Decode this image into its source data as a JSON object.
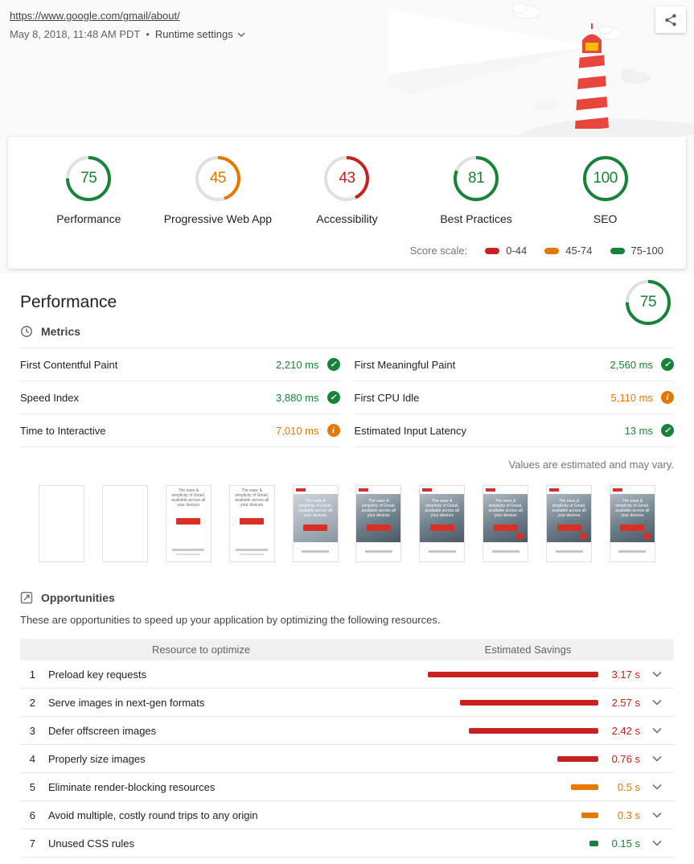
{
  "header": {
    "url": "https://www.google.com/gmail/about/",
    "date": "May 8, 2018, 11:48 AM PDT",
    "separator": "•",
    "runtime_settings": "Runtime settings"
  },
  "colors": {
    "pass": "#178239",
    "average": "#e67700",
    "fail": "#c7221f"
  },
  "scores": [
    {
      "label": "Performance",
      "score": 75,
      "level": "pass"
    },
    {
      "label": "Progressive Web App",
      "score": 45,
      "level": "average"
    },
    {
      "label": "Accessibility",
      "score": 43,
      "level": "fail"
    },
    {
      "label": "Best Practices",
      "score": 81,
      "level": "pass"
    },
    {
      "label": "SEO",
      "score": 100,
      "level": "pass"
    }
  ],
  "score_scale": {
    "label": "Score scale:",
    "ranges": [
      {
        "label": "0-44",
        "level": "fail"
      },
      {
        "label": "45-74",
        "level": "average"
      },
      {
        "label": "75-100",
        "level": "pass"
      }
    ]
  },
  "performance": {
    "title": "Performance",
    "score": 75,
    "level": "pass",
    "metrics_title": "Metrics",
    "metrics": [
      {
        "name": "First Contentful Paint",
        "value": "2,210 ms",
        "status": "pass"
      },
      {
        "name": "First Meaningful Paint",
        "value": "2,560 ms",
        "status": "pass"
      },
      {
        "name": "Speed Index",
        "value": "3,880 ms",
        "status": "pass"
      },
      {
        "name": "First CPU Idle",
        "value": "5,110 ms",
        "status": "average"
      },
      {
        "name": "Time to Interactive",
        "value": "7,010 ms",
        "status": "average"
      },
      {
        "name": "Estimated Input Latency",
        "value": "13 ms",
        "status": "pass"
      }
    ],
    "disclaimer": "Values are estimated and may vary."
  },
  "filmstrip": {
    "caption": "The ease & simplicity of Gmail, available across all your devices",
    "frames": [
      {
        "stage": "blank"
      },
      {
        "stage": "blank"
      },
      {
        "stage": "text"
      },
      {
        "stage": "text"
      },
      {
        "stage": "image-light"
      },
      {
        "stage": "image"
      },
      {
        "stage": "image"
      },
      {
        "stage": "image-fab"
      },
      {
        "stage": "image-fab"
      },
      {
        "stage": "image-fab"
      }
    ]
  },
  "opportunities": {
    "title": "Opportunities",
    "description": "These are opportunities to speed up your application by optimizing the following resources.",
    "columns": [
      "Resource to optimize",
      "Estimated Savings"
    ],
    "rows": [
      {
        "index": 1,
        "label": "Preload key requests",
        "savings": "3.17 s",
        "level": "fail",
        "bar_pct": 100
      },
      {
        "index": 2,
        "label": "Serve images in next-gen formats",
        "savings": "2.57 s",
        "level": "fail",
        "bar_pct": 81
      },
      {
        "index": 3,
        "label": "Defer offscreen images",
        "savings": "2.42 s",
        "level": "fail",
        "bar_pct": 76
      },
      {
        "index": 4,
        "label": "Properly size images",
        "savings": "0.76 s",
        "level": "fail",
        "bar_pct": 24
      },
      {
        "index": 5,
        "label": "Eliminate render-blocking resources",
        "savings": "0.5 s",
        "level": "average",
        "bar_pct": 16
      },
      {
        "index": 6,
        "label": "Avoid multiple, costly round trips to any origin",
        "savings": "0.3 s",
        "level": "average",
        "bar_pct": 10
      },
      {
        "index": 7,
        "label": "Unused CSS rules",
        "savings": "0.15 s",
        "level": "pass",
        "bar_pct": 5
      }
    ]
  }
}
